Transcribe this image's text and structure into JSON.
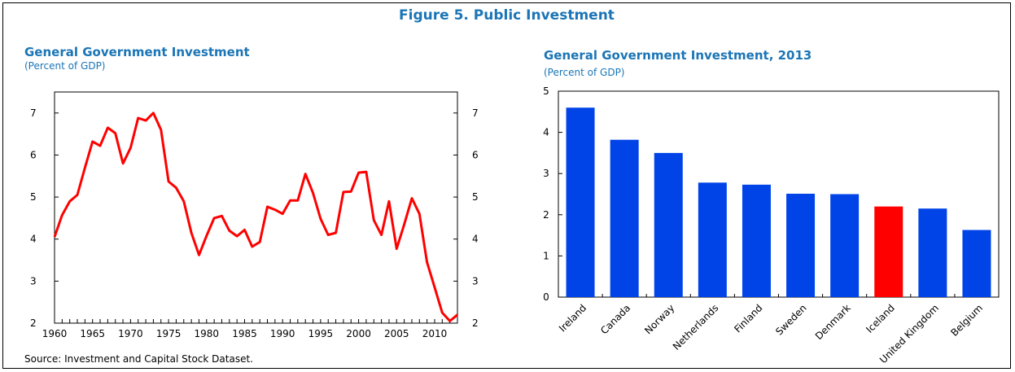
{
  "figure_title": "Figure 5. Public Investment",
  "source": "Source: Investment and Capital Stock Dataset.",
  "chart_data": [
    {
      "type": "line",
      "title": "General Government Investment",
      "subtitle": "(Percent of GDP)",
      "x": [
        1960,
        1961,
        1962,
        1963,
        1964,
        1965,
        1966,
        1967,
        1968,
        1969,
        1970,
        1971,
        1972,
        1973,
        1974,
        1975,
        1976,
        1977,
        1978,
        1979,
        1980,
        1981,
        1982,
        1983,
        1984,
        1985,
        1986,
        1987,
        1988,
        1989,
        1990,
        1991,
        1992,
        1993,
        1994,
        1995,
        1996,
        1997,
        1998,
        1999,
        2000,
        2001,
        2002,
        2003,
        2004,
        2005,
        2006,
        2007,
        2008,
        2009,
        2010,
        2011,
        2012,
        2013
      ],
      "series": [
        {
          "color": "#ff0000",
          "values": [
            4.05,
            4.57,
            4.9,
            5.05,
            5.7,
            6.32,
            6.22,
            6.65,
            6.52,
            5.8,
            6.17,
            6.88,
            6.82,
            7.0,
            6.6,
            5.37,
            5.22,
            4.9,
            4.15,
            3.62,
            4.08,
            4.5,
            4.55,
            4.2,
            4.07,
            4.22,
            3.82,
            3.93,
            4.77,
            4.7,
            4.6,
            4.92,
            4.92,
            5.55,
            5.1,
            4.48,
            4.1,
            4.15,
            5.12,
            5.13,
            5.58,
            5.6,
            4.45,
            4.1,
            4.9,
            3.77,
            4.35,
            4.97,
            4.6,
            3.45,
            2.85,
            2.25,
            2.05,
            2.2
          ]
        }
      ],
      "xticks": [
        "1960",
        "1965",
        "1970",
        "1975",
        "1980",
        "1985",
        "1990",
        "1995",
        "2000",
        "2005",
        "2010"
      ],
      "yticks": [
        "2",
        "3",
        "4",
        "5",
        "6",
        "7"
      ],
      "ylim": [
        2,
        7.5
      ],
      "xlim": [
        1960,
        2013
      ],
      "secondary_axis": true
    },
    {
      "type": "bar",
      "title": "General Government Investment, 2013",
      "subtitle": "(Percent of GDP)",
      "categories": [
        "Ireland",
        "Canada",
        "Norway",
        "Netherlands",
        "Finland",
        "Sweden",
        "Denmark",
        "Iceland",
        "United Kingdom",
        "Belgium"
      ],
      "values": [
        4.6,
        3.82,
        3.5,
        2.78,
        2.73,
        2.51,
        2.5,
        2.2,
        2.15,
        1.63
      ],
      "colors": [
        "#0044e8",
        "#0044e8",
        "#0044e8",
        "#0044e8",
        "#0044e8",
        "#0044e8",
        "#0044e8",
        "#ff0000",
        "#0044e8",
        "#0044e8"
      ],
      "yticks": [
        "0",
        "1",
        "2",
        "3",
        "4",
        "5"
      ],
      "ylim": [
        0,
        5
      ]
    }
  ]
}
